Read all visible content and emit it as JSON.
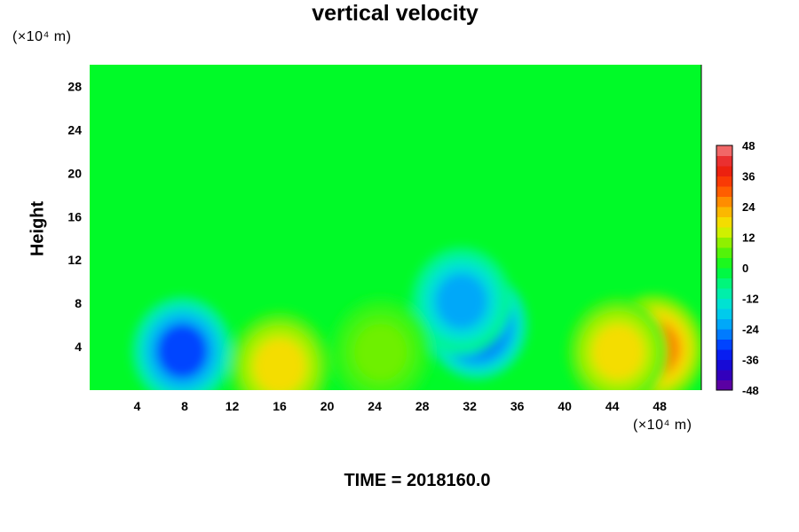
{
  "chart_data": {
    "type": "heatmap",
    "title": "vertical velocity",
    "xlabel": "",
    "ylabel": "Height",
    "x_unit": "(×10⁴ m)",
    "y_unit": "(×10⁴ m)",
    "xlim": [
      0,
      51.5
    ],
    "ylim": [
      0,
      30
    ],
    "x_ticks": [
      4,
      8,
      12,
      16,
      20,
      24,
      28,
      32,
      36,
      40,
      44,
      48
    ],
    "y_ticks": [
      4,
      8,
      12,
      16,
      20,
      24,
      28
    ],
    "colorbar": {
      "range": [
        -48,
        48
      ],
      "step": 4,
      "tick_values": [
        48,
        36,
        24,
        12,
        0,
        -12,
        -24,
        -36,
        -48
      ]
    },
    "features": [
      {
        "label": "updraft",
        "x": 47.5,
        "y": 3.8,
        "value": 28
      },
      {
        "label": "updraft",
        "x": 44.5,
        "y": 3.5,
        "value": 18
      },
      {
        "label": "downdraft",
        "x": 7.8,
        "y": 3.6,
        "value": -30
      },
      {
        "label": "downdraft",
        "x": 32.6,
        "y": 6.0,
        "value": -36
      },
      {
        "label": "downdraft",
        "x": 31.3,
        "y": 8.2,
        "value": -22
      },
      {
        "label": "updraft",
        "x": 16.0,
        "y": 2.2,
        "value": 18
      },
      {
        "label": "updraft",
        "x": 24.5,
        "y": 3.5,
        "value": 8
      }
    ],
    "background_value": 0,
    "grid": false
  },
  "footer": {
    "time_text": "TIME = 2018160.0"
  }
}
